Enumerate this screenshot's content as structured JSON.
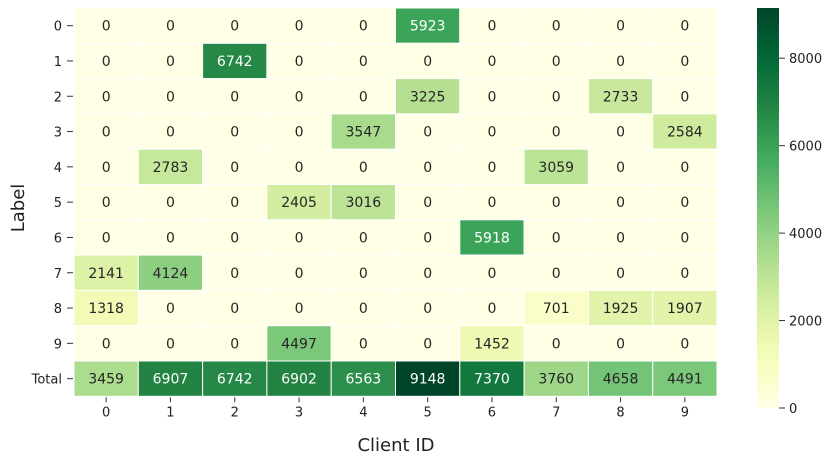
{
  "chart_data": {
    "type": "heatmap",
    "xlabel": "Client ID",
    "ylabel": "Label",
    "x_categories": [
      "0",
      "1",
      "2",
      "3",
      "4",
      "5",
      "6",
      "7",
      "8",
      "9"
    ],
    "y_categories": [
      "0",
      "1",
      "2",
      "3",
      "4",
      "5",
      "6",
      "7",
      "8",
      "9",
      "Total"
    ],
    "values": [
      [
        0,
        0,
        0,
        0,
        0,
        5923,
        0,
        0,
        0,
        0
      ],
      [
        0,
        0,
        6742,
        0,
        0,
        0,
        0,
        0,
        0,
        0
      ],
      [
        0,
        0,
        0,
        0,
        0,
        3225,
        0,
        0,
        2733,
        0
      ],
      [
        0,
        0,
        0,
        0,
        3547,
        0,
        0,
        0,
        0,
        2584
      ],
      [
        0,
        2783,
        0,
        0,
        0,
        0,
        0,
        3059,
        0,
        0
      ],
      [
        0,
        0,
        0,
        2405,
        3016,
        0,
        0,
        0,
        0,
        0
      ],
      [
        0,
        0,
        0,
        0,
        0,
        0,
        5918,
        0,
        0,
        0
      ],
      [
        2141,
        4124,
        0,
        0,
        0,
        0,
        0,
        0,
        0,
        0
      ],
      [
        1318,
        0,
        0,
        0,
        0,
        0,
        0,
        701,
        1925,
        1907
      ],
      [
        0,
        0,
        0,
        4497,
        0,
        0,
        1452,
        0,
        0,
        0
      ],
      [
        3459,
        6907,
        6742,
        6902,
        6563,
        9148,
        7370,
        3760,
        4658,
        4491
      ]
    ],
    "colorbar": {
      "colormap": "YlGn",
      "vmin": 0,
      "vmax": 9148,
      "ticks": [
        0,
        2000,
        4000,
        6000,
        8000
      ]
    },
    "grid": false
  }
}
